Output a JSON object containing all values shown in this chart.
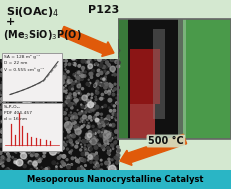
{
  "bg_color": "#d4e8d0",
  "arrow_color": "#e05a0a",
  "text_color": "#111111",
  "bottom_bar_color": "#2ab5c5",
  "bottom_text_color": "#000000",
  "sem_bg": "#111111",
  "inset_bg": "#f0eeee",
  "bet_line_color": "#444444",
  "xrd_line_color": "#cc2222",
  "photo_green": "#2d6a2d",
  "photo_dark": "#111111",
  "photo_red": "#8b1010",
  "figsize": [
    2.31,
    1.89
  ],
  "dpi": 100,
  "title1": "Si(OAc)",
  "title1_sub": "4",
  "plus": "+",
  "title2": "(Me",
  "title2_sub1": "3",
  "title2_mid": "SiO)",
  "title2_sub2": "3",
  "title2_end": "P(O)",
  "p123": "P123",
  "temp": "500 °C",
  "bottom_label": "Mesoporous Nanocrystalline Catalyst",
  "sa_line": "SA = 128 m² g⁻¹",
  "d_line": "D = 22 nm",
  "v_line": "V = 0.555 cm³ g⁻¹",
  "xrd1": "Si₅P₆O₂₅",
  "xrd2": "PDF 404-457",
  "xrd3": "d = 16 nm"
}
